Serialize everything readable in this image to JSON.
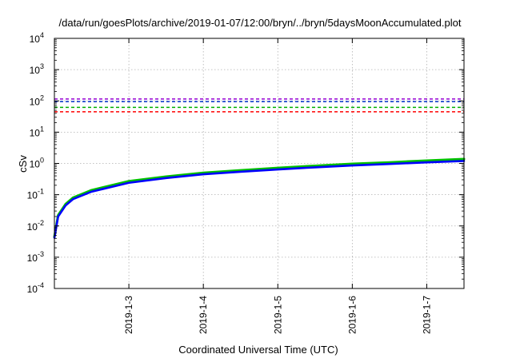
{
  "chart_data": {
    "type": "line",
    "title": "/data/run/goesPlots/archive/2019-01-07/12:00/bryn/../bryn/5daysMoonAccumulated.plot",
    "xlabel": "Coordinated Universal Time (UTC)",
    "ylabel": "cSv",
    "y_scale": "log",
    "ylim": [
      0.0001,
      10000
    ],
    "xlim": [
      "2019-01-02T00:00",
      "2019-01-07T12:00"
    ],
    "y_ticks": [
      {
        "value": 0.0001,
        "base": "10",
        "exp": "-4"
      },
      {
        "value": 0.001,
        "base": "10",
        "exp": "-3"
      },
      {
        "value": 0.01,
        "base": "10",
        "exp": "-2"
      },
      {
        "value": 0.1,
        "base": "10",
        "exp": "-1"
      },
      {
        "value": 1,
        "base": "10",
        "exp": "0"
      },
      {
        "value": 10,
        "base": "10",
        "exp": "1"
      },
      {
        "value": 100,
        "base": "10",
        "exp": "2"
      },
      {
        "value": 1000,
        "base": "10",
        "exp": "3"
      },
      {
        "value": 10000,
        "base": "10",
        "exp": "4"
      }
    ],
    "x_ticks": [
      {
        "value": "2019-01-03T00:00",
        "label": "2019-1-3"
      },
      {
        "value": "2019-01-04T00:00",
        "label": "2019-1-4"
      },
      {
        "value": "2019-01-05T00:00",
        "label": "2019-1-5"
      },
      {
        "value": "2019-01-06T00:00",
        "label": "2019-1-6"
      },
      {
        "value": "2019-01-07T00:00",
        "label": "2019-1-7"
      }
    ],
    "grid": true,
    "legend": "none",
    "reference_lines": [
      {
        "value": 115,
        "color": "#9400d3",
        "style": "dashed"
      },
      {
        "value": 95,
        "color": "#0033cc",
        "style": "dashed"
      },
      {
        "value": 62,
        "color": "#00b000",
        "style": "dashed"
      },
      {
        "value": 45,
        "color": "#ff0000",
        "style": "dashed"
      }
    ],
    "series": [
      {
        "color": "#00c000",
        "x": [
          "2019-01-02T00:00",
          "2019-01-02T01:12",
          "2019-01-02T03:36",
          "2019-01-02T06:00",
          "2019-01-02T12:00",
          "2019-01-03T00:00",
          "2019-01-03T12:00",
          "2019-01-04T00:00",
          "2019-01-04T12:00",
          "2019-01-05T00:00",
          "2019-01-05T12:00",
          "2019-01-06T00:00",
          "2019-01-06T12:00",
          "2019-01-07T00:00",
          "2019-01-07T12:00"
        ],
        "y": [
          0.0045,
          0.022,
          0.05,
          0.08,
          0.14,
          0.27,
          0.38,
          0.5,
          0.6,
          0.72,
          0.84,
          0.97,
          1.08,
          1.23,
          1.38
        ]
      },
      {
        "color": "#0000ff",
        "x": [
          "2019-01-02T00:00",
          "2019-01-02T01:12",
          "2019-01-02T03:36",
          "2019-01-02T06:00",
          "2019-01-02T12:00",
          "2019-01-03T00:00",
          "2019-01-03T12:00",
          "2019-01-04T00:00",
          "2019-01-04T12:00",
          "2019-01-05T00:00",
          "2019-01-05T12:00",
          "2019-01-06T00:00",
          "2019-01-06T12:00",
          "2019-01-07T00:00",
          "2019-01-07T12:00"
        ],
        "y": [
          0.0042,
          0.02,
          0.045,
          0.072,
          0.125,
          0.24,
          0.34,
          0.45,
          0.54,
          0.64,
          0.75,
          0.86,
          0.96,
          1.08,
          1.2
        ]
      }
    ]
  }
}
